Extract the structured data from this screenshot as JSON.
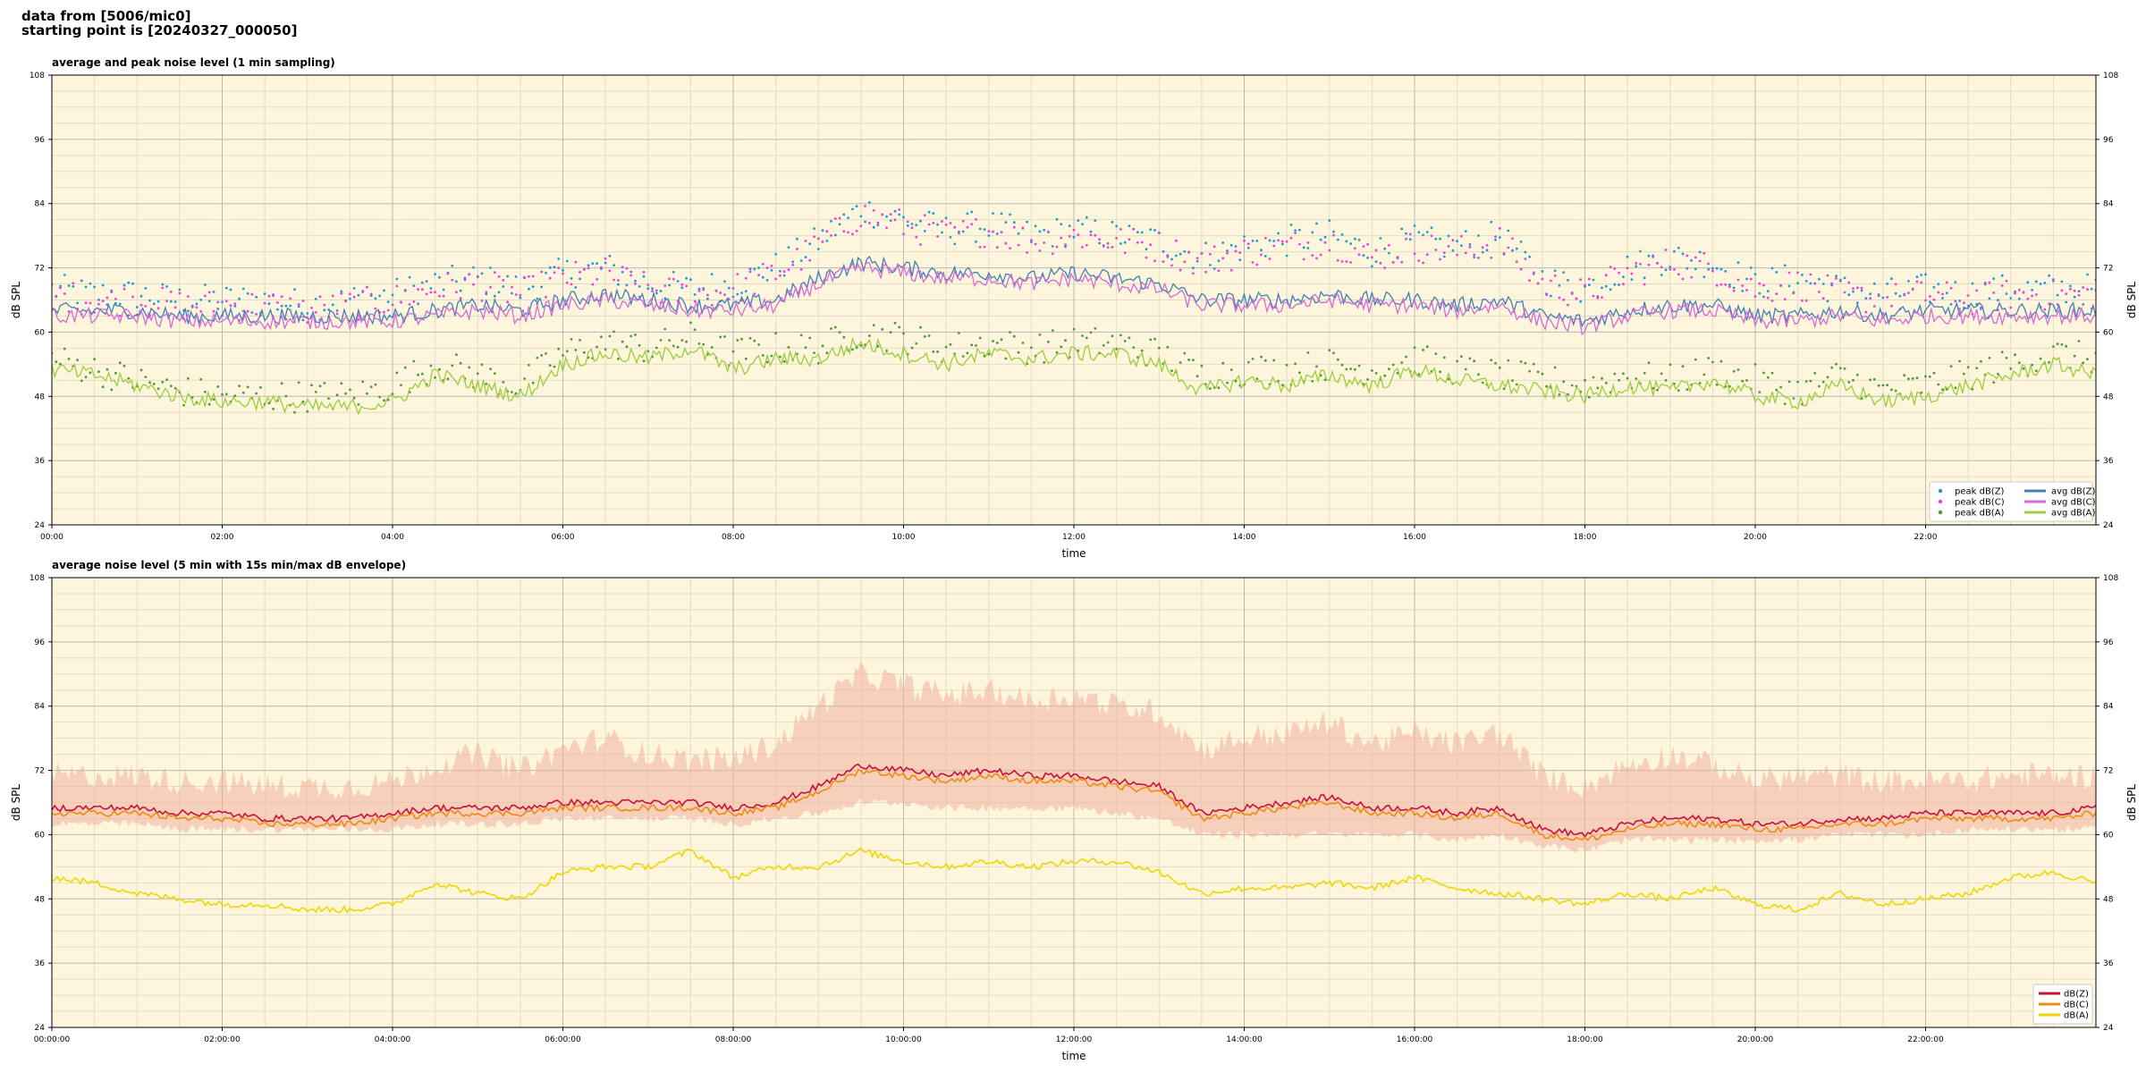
{
  "header": {
    "line1": "data from [5006/mic0]",
    "line2": "starting point is [20240327_000050]"
  },
  "colors": {
    "background": "#fdf6dc",
    "grid_major": "#b8b8b8",
    "grid_minor": "#e3dcc4",
    "peak_z": "#1f9ad6",
    "peak_c": "#f03ee0",
    "peak_a": "#4c9a3a",
    "avg_z": "#3f7fb5",
    "avg_c": "#d46ad6",
    "avg_a": "#9ccd3c",
    "d5_z": "#c8103c",
    "d5_c": "#f08a10",
    "d5_a": "#f2d600",
    "envelope": "#f2b0a0"
  },
  "chart_data": [
    {
      "type": "line",
      "title": "average and peak noise level (1 min sampling)",
      "xlabel": "time",
      "ylabel": "dB SPL",
      "ylabel_right": "dB SPL",
      "xlim": [
        0,
        24
      ],
      "ylim": [
        24,
        108
      ],
      "yticks": [
        24,
        36,
        48,
        60,
        72,
        84,
        96,
        108
      ],
      "xtick_labels": [
        "00:00",
        "02:00",
        "04:00",
        "06:00",
        "08:00",
        "10:00",
        "12:00",
        "14:00",
        "16:00",
        "18:00",
        "20:00",
        "22:00"
      ],
      "grid": true,
      "legend_position": "bottom-right",
      "x_hours": [
        0,
        0.5,
        1,
        1.5,
        2,
        2.5,
        3,
        3.5,
        4,
        4.5,
        5,
        5.5,
        6,
        6.5,
        7,
        7.5,
        8,
        8.5,
        9,
        9.5,
        10,
        10.5,
        11,
        11.5,
        12,
        12.5,
        13,
        13.5,
        14,
        14.5,
        15,
        15.5,
        16,
        16.5,
        17,
        17.5,
        18,
        18.5,
        19,
        19.5,
        20,
        20.5,
        21,
        21.5,
        22,
        22.5,
        23,
        23.5,
        24
      ],
      "series": [
        {
          "name": "peak dB(Z)",
          "kind": "scatter",
          "values": [
            68,
            67,
            67,
            66,
            66,
            66,
            65,
            66,
            67,
            69,
            70,
            68,
            71,
            72,
            69,
            68,
            69,
            72,
            77,
            83,
            81,
            79,
            80,
            78,
            79,
            78,
            77,
            74,
            76,
            77,
            78,
            75,
            77,
            76,
            78,
            70,
            68,
            72,
            74,
            73,
            69,
            70,
            68,
            67,
            68,
            67,
            68,
            68,
            68
          ]
        },
        {
          "name": "peak dB(C)",
          "kind": "scatter",
          "values": [
            67,
            66,
            66,
            65,
            65,
            65,
            64,
            65,
            66,
            68,
            69,
            67,
            70,
            71,
            68,
            67,
            68,
            71,
            76,
            82,
            80,
            78,
            79,
            77,
            78,
            77,
            76,
            73,
            75,
            76,
            77,
            74,
            76,
            75,
            77,
            69,
            67,
            71,
            73,
            72,
            68,
            69,
            67,
            66,
            67,
            66,
            67,
            67,
            67
          ]
        },
        {
          "name": "peak dB(A)",
          "kind": "scatter",
          "values": [
            55,
            53,
            51,
            49,
            48,
            48,
            48,
            48,
            50,
            54,
            52,
            50,
            56,
            58,
            57,
            59,
            56,
            57,
            57,
            60,
            59,
            57,
            58,
            57,
            58,
            58,
            56,
            52,
            53,
            53,
            54,
            53,
            55,
            53,
            52,
            51,
            50,
            52,
            51,
            53,
            51,
            49,
            52,
            49,
            50,
            52,
            54,
            56,
            55
          ]
        },
        {
          "name": "avg dB(Z)",
          "kind": "line",
          "values": [
            64,
            64,
            64,
            63,
            63,
            63,
            63,
            63,
            63,
            64,
            65,
            64,
            66,
            67,
            66,
            65,
            65,
            66,
            70,
            73,
            72,
            71,
            71,
            70,
            71,
            70,
            69,
            66,
            66,
            66,
            67,
            66,
            66,
            65,
            66,
            63,
            62,
            64,
            65,
            65,
            63,
            63,
            64,
            63,
            64,
            64,
            64,
            64,
            64
          ]
        },
        {
          "name": "avg dB(C)",
          "kind": "line",
          "values": [
            63,
            63,
            63,
            62,
            62,
            62,
            62,
            62,
            62,
            63,
            64,
            63,
            65,
            66,
            65,
            64,
            64,
            65,
            69,
            72,
            71,
            70,
            70,
            69,
            70,
            69,
            68,
            65,
            65,
            65,
            66,
            65,
            65,
            64,
            65,
            62,
            61,
            63,
            64,
            64,
            62,
            62,
            63,
            62,
            63,
            63,
            63,
            63,
            63
          ]
        },
        {
          "name": "avg dB(A)",
          "kind": "line",
          "values": [
            53,
            52,
            50,
            48,
            47,
            47,
            46,
            46,
            47,
            52,
            50,
            48,
            54,
            56,
            55,
            57,
            53,
            55,
            55,
            58,
            56,
            54,
            56,
            55,
            56,
            56,
            54,
            49,
            51,
            50,
            52,
            50,
            53,
            51,
            50,
            49,
            48,
            50,
            49,
            51,
            48,
            47,
            50,
            47,
            48,
            50,
            52,
            54,
            52
          ]
        }
      ]
    },
    {
      "type": "line",
      "title": "average noise level (5 min with 15s min/max dB envelope)",
      "xlabel": "time",
      "ylabel": "dB SPL",
      "ylabel_right": "dB SPL",
      "xlim": [
        0,
        24
      ],
      "ylim": [
        24,
        108
      ],
      "yticks": [
        24,
        36,
        48,
        60,
        72,
        84,
        96,
        108
      ],
      "xtick_labels": [
        "00:00:00",
        "02:00:00",
        "04:00:00",
        "06:00:00",
        "08:00:00",
        "10:00:00",
        "12:00:00",
        "14:00:00",
        "16:00:00",
        "18:00:00",
        "20:00:00",
        "22:00:00"
      ],
      "grid": true,
      "legend_position": "bottom-right",
      "x_hours": [
        0,
        0.5,
        1,
        1.5,
        2,
        2.5,
        3,
        3.5,
        4,
        4.5,
        5,
        5.5,
        6,
        6.5,
        7,
        7.5,
        8,
        8.5,
        9,
        9.5,
        10,
        10.5,
        11,
        11.5,
        12,
        12.5,
        13,
        13.5,
        14,
        14.5,
        15,
        15.5,
        16,
        16.5,
        17,
        17.5,
        18,
        18.5,
        19,
        19.5,
        20,
        20.5,
        21,
        21.5,
        22,
        22.5,
        23,
        23.5,
        24
      ],
      "envelope": {
        "min": [
          62,
          62,
          62,
          61,
          61,
          61,
          61,
          61,
          61,
          62,
          62,
          62,
          63,
          63,
          63,
          63,
          62,
          63,
          64,
          66,
          66,
          65,
          65,
          65,
          65,
          64,
          63,
          60,
          60,
          60,
          60,
          60,
          60,
          59,
          60,
          58,
          57,
          59,
          59,
          59,
          59,
          59,
          60,
          60,
          60,
          61,
          61,
          61,
          61
        ],
        "max": [
          70,
          70,
          70,
          69,
          69,
          68,
          68,
          68,
          69,
          72,
          74,
          71,
          75,
          77,
          74,
          73,
          73,
          76,
          83,
          89,
          87,
          85,
          86,
          84,
          85,
          83,
          82,
          75,
          77,
          78,
          80,
          76,
          78,
          76,
          78,
          70,
          68,
          72,
          74,
          72,
          69,
          70,
          70,
          69,
          69,
          69,
          70,
          70,
          70
        ]
      },
      "series": [
        {
          "name": "dB(Z)",
          "kind": "line",
          "values": [
            65,
            65,
            65,
            64,
            64,
            63,
            63,
            63,
            64,
            65,
            65,
            65,
            66,
            66,
            66,
            66,
            65,
            66,
            69,
            73,
            72,
            71,
            72,
            71,
            71,
            70,
            69,
            64,
            65,
            66,
            67,
            65,
            65,
            64,
            65,
            61,
            60,
            62,
            63,
            63,
            62,
            62,
            63,
            63,
            64,
            64,
            64,
            64,
            65
          ]
        },
        {
          "name": "dB(C)",
          "kind": "line",
          "values": [
            64,
            64,
            64,
            63,
            63,
            62,
            62,
            62,
            63,
            64,
            64,
            64,
            65,
            65,
            65,
            65,
            64,
            65,
            68,
            72,
            71,
            70,
            71,
            70,
            70,
            69,
            68,
            63,
            64,
            65,
            66,
            64,
            64,
            63,
            64,
            60,
            59,
            61,
            62,
            62,
            61,
            61,
            62,
            62,
            63,
            63,
            63,
            63,
            64
          ]
        },
        {
          "name": "dB(A)",
          "kind": "line",
          "values": [
            52,
            51,
            49,
            48,
            47,
            47,
            46,
            46,
            47,
            51,
            49,
            48,
            53,
            54,
            54,
            57,
            52,
            54,
            54,
            57,
            55,
            54,
            55,
            54,
            55,
            55,
            53,
            49,
            50,
            50,
            51,
            50,
            52,
            50,
            49,
            48,
            47,
            49,
            48,
            50,
            47,
            46,
            49,
            47,
            48,
            49,
            52,
            53,
            51
          ]
        }
      ]
    }
  ]
}
